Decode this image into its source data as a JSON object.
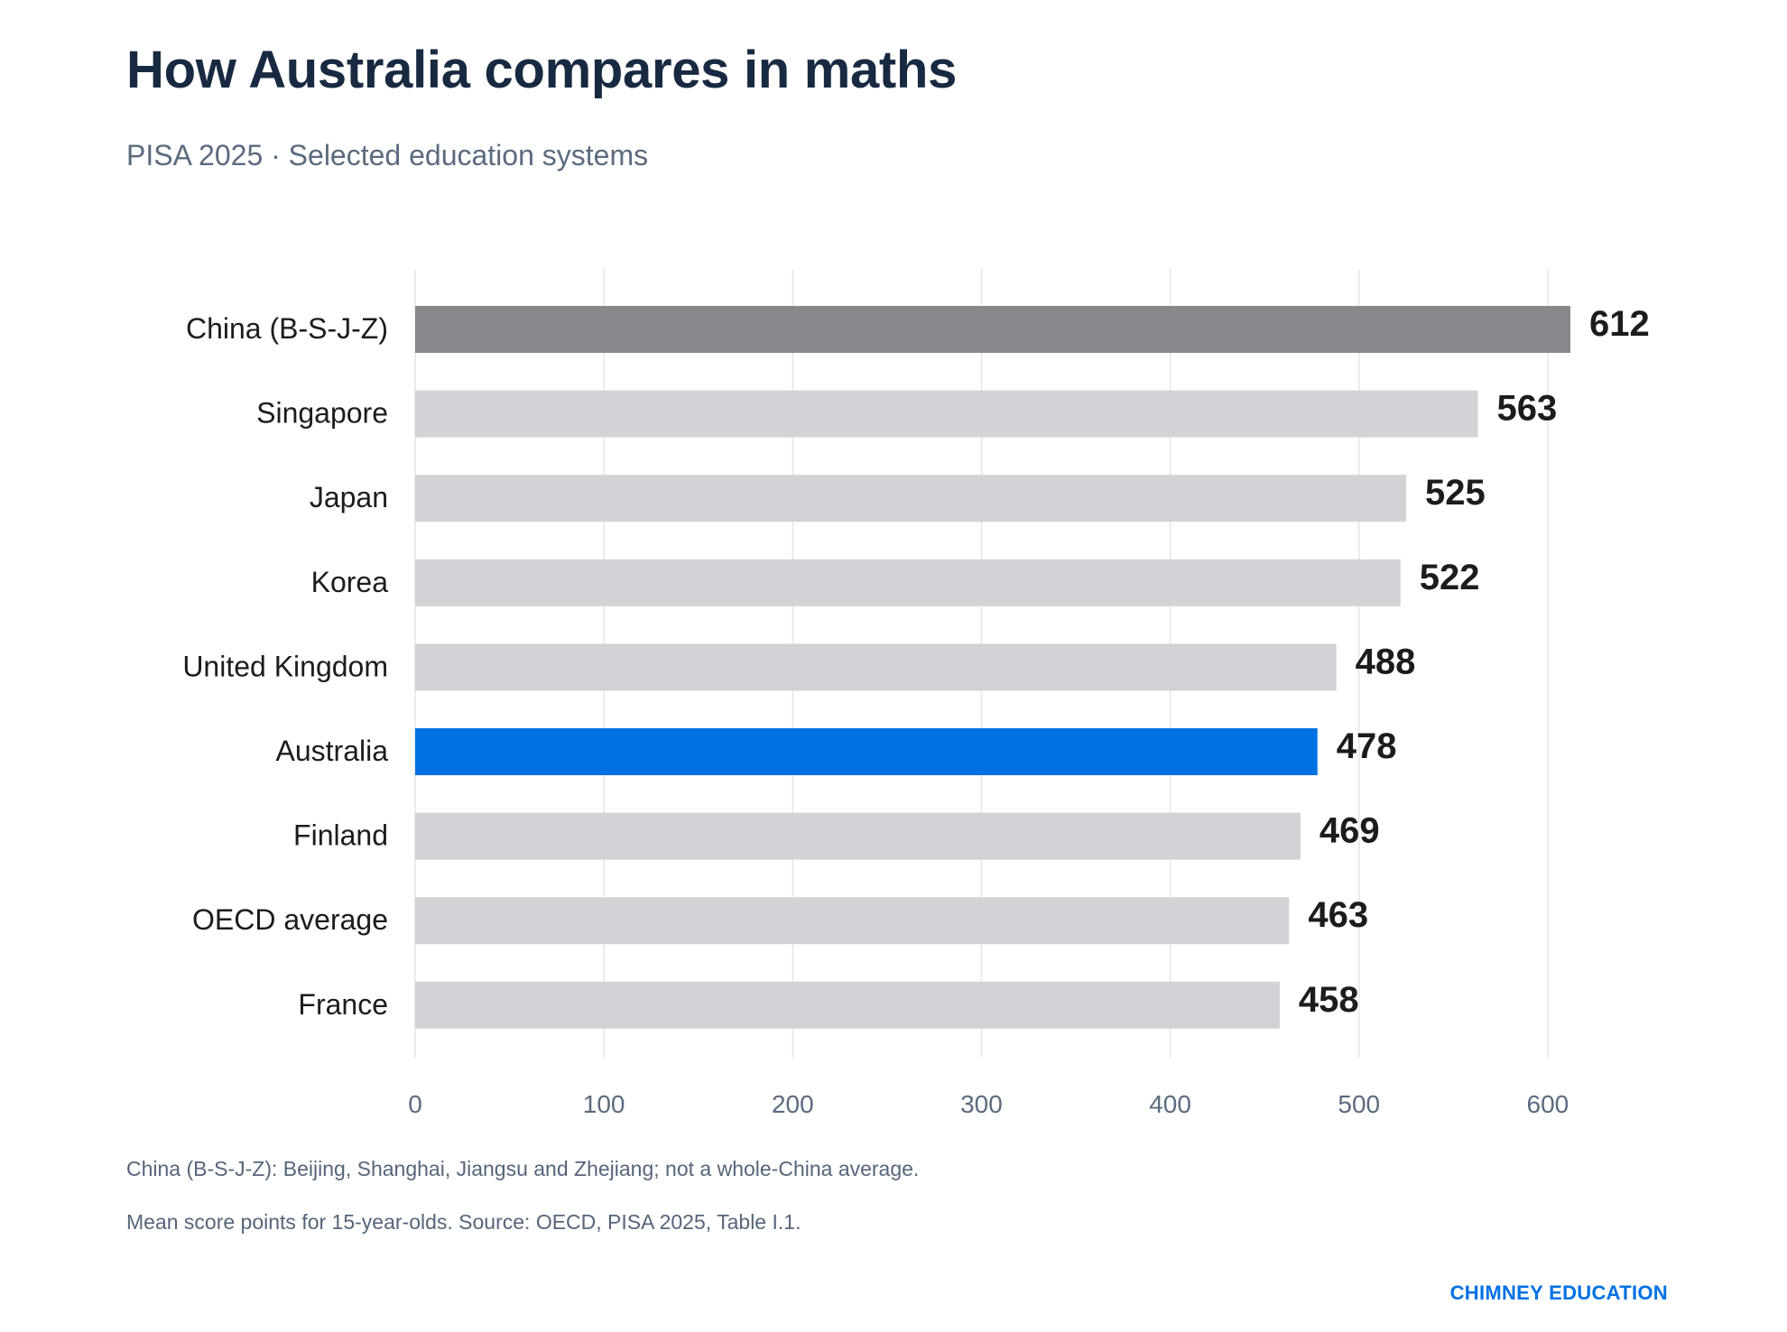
{
  "header": {
    "title": "How Australia compares in maths",
    "subtitle": "PISA 2025 · Selected education systems"
  },
  "notes": [
    "China (B-S-J-Z): Beijing, Shanghai, Jiangsu and Zhejiang; not a whole-China average.",
    "Mean score points for 15-year-olds. Source: OECD, PISA 2025, Table I.1."
  ],
  "brand": "CHIMNEY EDUCATION",
  "colors": {
    "highlight": "#0071e3",
    "top": "#88888d",
    "default": "#d3d3d7",
    "grid": "#e6e6e8"
  },
  "chart_data": {
    "type": "bar",
    "orientation": "horizontal",
    "title": "How Australia compares in maths",
    "subtitle": "PISA 2025 · Selected education systems",
    "xlabel": "",
    "ylabel": "",
    "xlim": [
      0,
      600
    ],
    "xticks": [
      0,
      100,
      200,
      300,
      400,
      500,
      600
    ],
    "grid": "vertical",
    "categories": [
      "China (B-S-J-Z)",
      "Singapore",
      "Japan",
      "Korea",
      "United Kingdom",
      "Australia",
      "Finland",
      "OECD average",
      "France"
    ],
    "values": [
      612,
      563,
      525,
      522,
      488,
      478,
      469,
      463,
      458
    ],
    "bar_colors": [
      "#88888d",
      "#d3d3d7",
      "#d3d3d7",
      "#d3d3d7",
      "#d3d3d7",
      "#0071e3",
      "#d3d3d7",
      "#d3d3d7",
      "#d3d3d7"
    ],
    "data_labels": [
      "612",
      "563",
      "525",
      "522",
      "488",
      "478",
      "469",
      "463",
      "458"
    ]
  }
}
